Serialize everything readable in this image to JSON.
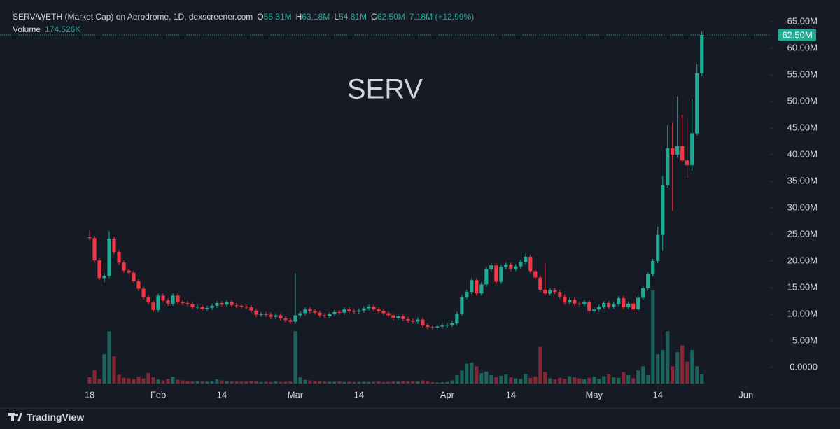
{
  "chart_data": {
    "type": "candlestick",
    "title": "SERV/WETH (Market Cap) on Aerodrome, 1D, dexscreener.com",
    "stats": [
      {
        "key": "O",
        "value": "55.31M"
      },
      {
        "key": "H",
        "value": "63.18M"
      },
      {
        "key": "L",
        "value": "54.81M"
      },
      {
        "key": "C",
        "value": "62.50M"
      }
    ],
    "change": "7.18M (+12.99%)",
    "volume_label": "Volume",
    "volume_value": "174.526K",
    "watermark": "SERV",
    "footer": "TradingView",
    "up_color": "#22ab94",
    "down_color": "#f23645",
    "xlim": [
      -18.3,
      138.9
    ],
    "xticks": [
      {
        "value": 0,
        "label": "18"
      },
      {
        "value": 14,
        "label": "Feb"
      },
      {
        "value": 27,
        "label": "14"
      },
      {
        "value": 42,
        "label": "Mar"
      },
      {
        "value": 55,
        "label": "14"
      },
      {
        "value": 73,
        "label": "Apr"
      },
      {
        "value": 86,
        "label": "14"
      },
      {
        "value": 103,
        "label": "May"
      },
      {
        "value": 116,
        "label": "14"
      },
      {
        "value": 134,
        "label": "Jun"
      }
    ],
    "ylim": [
      -3.03,
      69.08
    ],
    "yticks": [
      {
        "value": 0,
        "label": "0.0000"
      },
      {
        "value": 5,
        "label": "5.00M"
      },
      {
        "value": 10,
        "label": "10.00M"
      },
      {
        "value": 15,
        "label": "15.00M"
      },
      {
        "value": 20,
        "label": "20.00M"
      },
      {
        "value": 25,
        "label": "25.00M"
      },
      {
        "value": 30,
        "label": "30.00M"
      },
      {
        "value": 35,
        "label": "35.00M"
      },
      {
        "value": 40,
        "label": "40.00M"
      },
      {
        "value": 45,
        "label": "45.00M"
      },
      {
        "value": 50,
        "label": "50.00M"
      },
      {
        "value": 55,
        "label": "55.00M"
      },
      {
        "value": 60,
        "label": "60.00M"
      },
      {
        "value": 65,
        "label": "65.00M"
      }
    ],
    "last_price": {
      "value": 62.5,
      "label": "62.50M"
    },
    "open": [
      24.5,
      24.3,
      20.1,
      16.8,
      17.2,
      24.2,
      21.7,
      19.7,
      18.2,
      17.8,
      16.2,
      14.8,
      13.2,
      12.2,
      10.8,
      13.5,
      12.6,
      12.0,
      13.5,
      12.3,
      12.1,
      11.9,
      11.3,
      11.4,
      11.0,
      11.2,
      11.6,
      12.1,
      11.8,
      12.3,
      11.7,
      11.6,
      11.4,
      11.3,
      10.7,
      9.9,
      10.0,
      9.9,
      9.5,
      9.8,
      9.2,
      8.9,
      8.6,
      9.8,
      10.2,
      10.9,
      10.6,
      10.3,
      9.8,
      9.6,
      10.0,
      10.4,
      10.3,
      10.9,
      10.6,
      10.5,
      10.7,
      11.1,
      11.4,
      10.9,
      10.6,
      10.2,
      9.8,
      9.3,
      9.6,
      9.1,
      8.8,
      8.6,
      9.0,
      7.9,
      7.6,
      7.5,
      7.7,
      7.9,
      8.0,
      8.3,
      10.1,
      13.2,
      14.2,
      16.4,
      13.9,
      15.6,
      18.5,
      19.2,
      16.1,
      18.9,
      19.3,
      18.5,
      19.0,
      19.8,
      20.8,
      18.1,
      16.9,
      14.6,
      13.9,
      14.5,
      14.2,
      13.3,
      12.2,
      12.7,
      12.0,
      11.9,
      12.3,
      10.6,
      10.9,
      11.4,
      12.1,
      11.4,
      11.9,
      13.0,
      11.3,
      12.0,
      10.9,
      13.1,
      14.9,
      17.5,
      20.0,
      24.9,
      34.2,
      41.2,
      40.0,
      41.6,
      38.9,
      38.0,
      44.0,
      55.31
    ],
    "high": [
      25.8,
      24.7,
      20.5,
      17.6,
      25.6,
      24.6,
      22.1,
      20.1,
      18.6,
      18.2,
      16.6,
      15.2,
      13.6,
      12.6,
      13.9,
      13.9,
      13.0,
      13.9,
      13.9,
      12.7,
      12.5,
      12.3,
      11.8,
      11.8,
      11.6,
      12.0,
      12.5,
      12.5,
      12.7,
      12.7,
      12.1,
      12.0,
      11.8,
      11.7,
      11.1,
      10.4,
      10.4,
      10.3,
      10.2,
      10.2,
      9.6,
      9.3,
      17.7,
      10.6,
      11.3,
      11.3,
      11.0,
      10.7,
      10.2,
      10.4,
      10.8,
      10.8,
      11.3,
      11.3,
      11.0,
      11.1,
      11.5,
      11.8,
      11.8,
      11.3,
      11.0,
      10.6,
      10.2,
      10.0,
      10.0,
      9.5,
      9.2,
      9.4,
      9.4,
      8.3,
      8.0,
      8.1,
      8.3,
      8.4,
      8.7,
      10.5,
      13.6,
      14.6,
      16.8,
      16.8,
      16.0,
      18.9,
      19.6,
      19.6,
      19.3,
      19.7,
      19.7,
      19.4,
      20.2,
      21.3,
      21.2,
      18.5,
      17.3,
      19.6,
      14.9,
      14.9,
      14.6,
      13.7,
      13.1,
      13.1,
      12.4,
      12.7,
      12.7,
      11.3,
      11.8,
      12.5,
      12.5,
      12.3,
      13.4,
      13.4,
      12.4,
      12.4,
      13.5,
      15.3,
      17.9,
      20.4,
      26.5,
      36.0,
      45.5,
      46.0,
      51.0,
      47.5,
      47.0,
      50.5,
      57.0,
      63.18
    ],
    "low": [
      23.9,
      19.7,
      16.4,
      16.0,
      16.8,
      21.3,
      19.3,
      17.8,
      17.4,
      15.8,
      14.4,
      12.8,
      11.8,
      10.4,
      10.4,
      12.2,
      11.6,
      11.6,
      11.9,
      11.7,
      11.5,
      10.9,
      10.9,
      10.6,
      10.6,
      10.8,
      11.2,
      11.4,
      11.4,
      11.3,
      11.2,
      11.0,
      10.9,
      10.3,
      9.5,
      9.5,
      9.5,
      9.1,
      9.1,
      8.8,
      8.5,
      8.2,
      8.2,
      9.4,
      9.8,
      10.2,
      9.9,
      9.4,
      9.2,
      9.2,
      9.6,
      9.9,
      9.9,
      10.2,
      10.1,
      10.1,
      10.3,
      10.7,
      10.5,
      10.2,
      9.8,
      9.4,
      8.9,
      8.9,
      8.7,
      8.4,
      8.2,
      8.2,
      7.5,
      7.2,
      7.1,
      7.1,
      7.3,
      7.5,
      7.6,
      7.9,
      9.7,
      12.8,
      13.8,
      13.5,
      13.5,
      15.2,
      18.1,
      15.7,
      15.7,
      18.5,
      18.1,
      18.1,
      18.6,
      19.4,
      17.7,
      16.5,
      14.2,
      13.5,
      13.5,
      13.8,
      12.9,
      11.8,
      11.8,
      11.6,
      11.5,
      11.5,
      10.2,
      10.2,
      10.5,
      11.0,
      11.0,
      11.0,
      11.5,
      10.9,
      10.9,
      10.5,
      10.5,
      12.7,
      14.5,
      17.1,
      19.6,
      22.0,
      33.8,
      29.5,
      39.5,
      38.5,
      35.5,
      37.0,
      43.6,
      54.81
    ],
    "close": [
      24.3,
      20.1,
      16.8,
      17.2,
      24.2,
      21.7,
      19.7,
      18.2,
      17.8,
      16.2,
      14.8,
      13.2,
      12.2,
      10.8,
      13.5,
      12.6,
      12.0,
      13.5,
      12.3,
      12.1,
      11.9,
      11.3,
      11.4,
      11.0,
      11.2,
      11.6,
      12.1,
      11.8,
      12.3,
      11.7,
      11.6,
      11.4,
      11.3,
      10.7,
      9.9,
      10.0,
      9.9,
      9.5,
      9.8,
      9.2,
      8.9,
      8.6,
      9.8,
      10.2,
      10.9,
      10.6,
      10.3,
      9.8,
      9.6,
      10.0,
      10.4,
      10.3,
      10.9,
      10.6,
      10.5,
      10.7,
      11.1,
      11.4,
      10.9,
      10.6,
      10.2,
      9.8,
      9.3,
      9.6,
      9.1,
      8.8,
      8.6,
      9.0,
      7.9,
      7.6,
      7.5,
      7.7,
      7.9,
      8.0,
      8.3,
      10.1,
      13.2,
      14.2,
      16.4,
      13.9,
      15.6,
      18.5,
      19.2,
      16.1,
      18.9,
      19.3,
      18.5,
      19.0,
      19.8,
      20.8,
      18.1,
      16.9,
      14.6,
      13.9,
      14.5,
      14.2,
      13.3,
      12.2,
      12.7,
      12.0,
      11.9,
      12.3,
      10.6,
      10.9,
      11.4,
      12.1,
      11.4,
      11.9,
      13.0,
      11.3,
      12.0,
      10.9,
      13.1,
      14.9,
      17.5,
      20.0,
      24.9,
      34.2,
      41.2,
      40.0,
      41.6,
      38.9,
      38.0,
      44.0,
      55.3,
      62.5
    ],
    "volume": [
      120,
      260,
      90,
      560,
      1000,
      520,
      170,
      110,
      100,
      80,
      130,
      100,
      200,
      120,
      80,
      60,
      90,
      130,
      70,
      60,
      50,
      40,
      45,
      40,
      35,
      50,
      80,
      60,
      45,
      40,
      40,
      35,
      40,
      50,
      45,
      30,
      35,
      30,
      40,
      30,
      35,
      40,
      1000,
      120,
      70,
      60,
      50,
      45,
      40,
      35,
      35,
      40,
      30,
      35,
      30,
      30,
      35,
      30,
      35,
      40,
      30,
      35,
      40,
      35,
      50,
      40,
      45,
      40,
      60,
      50,
      25,
      20,
      25,
      30,
      60,
      160,
      250,
      380,
      400,
      330,
      200,
      230,
      160,
      120,
      150,
      170,
      120,
      100,
      90,
      180,
      110,
      130,
      700,
      220,
      100,
      80,
      110,
      90,
      140,
      120,
      100,
      80,
      110,
      130,
      90,
      140,
      180,
      120,
      110,
      220,
      160,
      100,
      250,
      330,
      160,
      1780,
      560,
      640,
      1000,
      330,
      600,
      730,
      420,
      640,
      330,
      174.526
    ]
  }
}
